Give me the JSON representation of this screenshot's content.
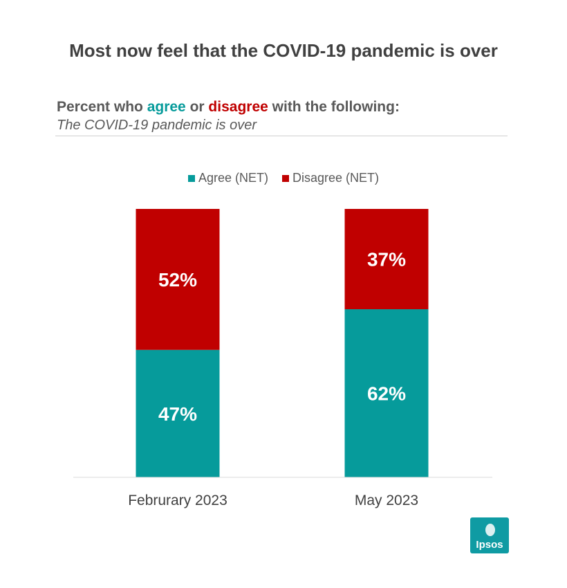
{
  "title": "Most now feel that the COVID-19 pandemic is over",
  "subtitle": {
    "prefix": "Percent who ",
    "agree_word": "agree",
    "middle": " or ",
    "disagree_word": "disagree",
    "suffix": " with the following:",
    "statement": "The COVID-19 pandemic is over"
  },
  "colors": {
    "agree": "#069b9b",
    "disagree": "#c00000",
    "title_text": "#404040",
    "body_text": "#595959",
    "logo": "#0f9ba3"
  },
  "logo": {
    "text": "Ipsos"
  },
  "chart_data": {
    "type": "bar",
    "stacked": true,
    "categories": [
      "Februrary 2023",
      "May 2023"
    ],
    "series": [
      {
        "name": "Agree (NET)",
        "values": [
          47,
          62
        ],
        "labels": [
          "47%",
          "62%"
        ]
      },
      {
        "name": "Disagree (NET)",
        "values": [
          52,
          37
        ],
        "labels": [
          "52%",
          "37%"
        ]
      }
    ],
    "legend_position": "top",
    "grid": false
  }
}
